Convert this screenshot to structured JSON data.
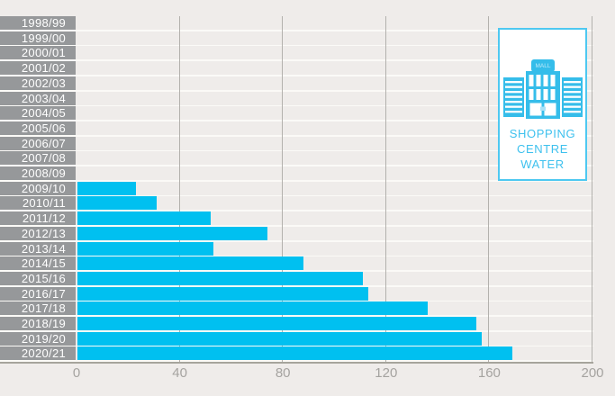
{
  "chart_data": {
    "type": "bar",
    "orientation": "horizontal",
    "title": "SHOPPING CENTRE WATER",
    "categories": [
      "1998/99",
      "1999/00",
      "2000/01",
      "2001/02",
      "2002/03",
      "2003/04",
      "2004/05",
      "2005/06",
      "2006/07",
      "2007/08",
      "2008/09",
      "2009/10",
      "2010/11",
      "2011/12",
      "2012/13",
      "2013/14",
      "2014/15",
      "2015/16",
      "2016/17",
      "2017/18",
      "2018/19",
      "2019/20",
      "2020/21"
    ],
    "values": [
      0,
      0,
      0,
      0,
      0,
      0,
      0,
      0,
      0,
      0,
      0,
      23,
      31,
      52,
      74,
      53,
      88,
      111,
      113,
      136,
      155,
      157,
      169
    ],
    "x_ticks": [
      0,
      40,
      80,
      120,
      160,
      200
    ],
    "xlim": [
      0,
      200
    ],
    "grid": "vertical",
    "bar_color": "#00c0f0",
    "legend_position": "top-right"
  },
  "legend_box": {
    "lines": [
      "SHOPPING",
      "CENTRE",
      "WATER"
    ],
    "icon": "mall-building-icon",
    "icon_sign_text": "MALL"
  },
  "colors": {
    "background": "#efecea",
    "bar": "#00c0f0",
    "label_block": "#96989a",
    "label_text": "#ffffff",
    "gridline": "#b3b1ad",
    "axis_line": "#a6a49c",
    "tick_text": "#a5a3a0",
    "legend_border": "#4ec8f1",
    "legend_text": "#3ec1ee"
  }
}
